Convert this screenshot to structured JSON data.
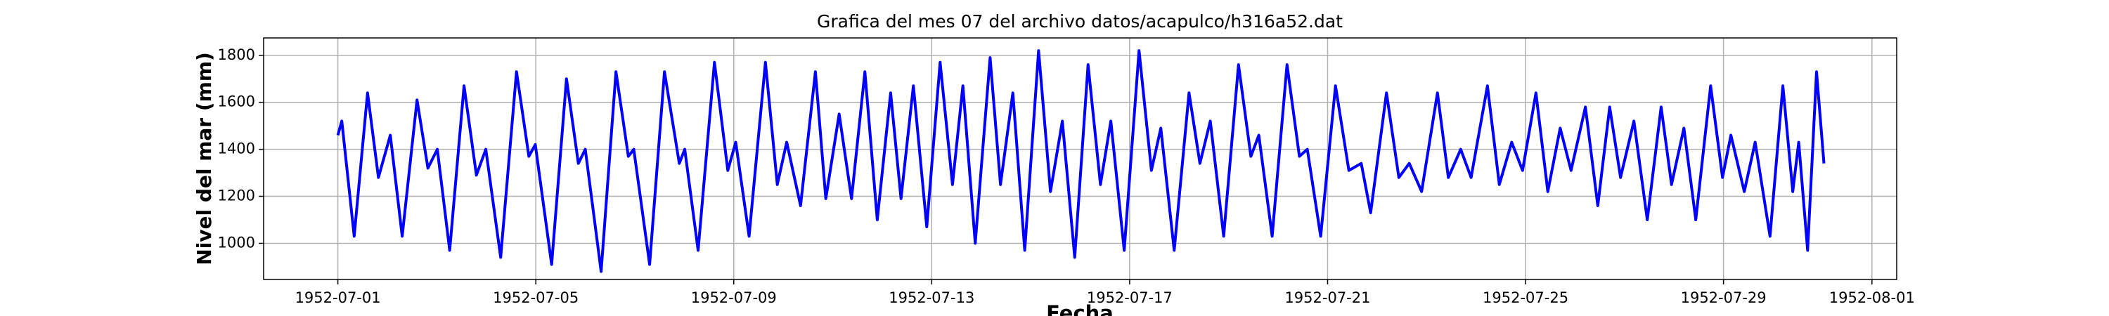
{
  "chart_data": {
    "type": "line",
    "title": "Grafica del mes 07 del archivo datos/acapulco/h316a52.dat",
    "x_label": "Fecha",
    "y_label": "Nivel del mar (mm)",
    "color": "#0000ff",
    "grid": true,
    "xlim": [
      -0.5,
      32.5
    ],
    "ylim": [
      846,
      1874
    ],
    "xticks": [
      {
        "value": 1,
        "label": "1952-07-01"
      },
      {
        "value": 5,
        "label": "1952-07-05"
      },
      {
        "value": 9,
        "label": "1952-07-09"
      },
      {
        "value": 13,
        "label": "1952-07-13"
      },
      {
        "value": 17,
        "label": "1952-07-17"
      },
      {
        "value": 21,
        "label": "1952-07-21"
      },
      {
        "value": 25,
        "label": "1952-07-25"
      },
      {
        "value": 29,
        "label": "1952-07-29"
      },
      {
        "value": 32,
        "label": "1952-08-01"
      }
    ],
    "yticks": [
      1000,
      1200,
      1400,
      1600,
      1800
    ],
    "x": [
      1.0,
      1.08,
      1.33,
      1.6,
      1.82,
      2.06,
      2.3,
      2.6,
      2.82,
      3.01,
      3.26,
      3.55,
      3.8,
      3.99,
      4.29,
      4.61,
      4.86,
      4.99,
      5.32,
      5.62,
      5.86,
      6.0,
      6.32,
      6.62,
      6.87,
      6.98,
      7.3,
      7.6,
      7.9,
      8.01,
      8.28,
      8.61,
      8.88,
      9.04,
      9.31,
      9.64,
      9.88,
      10.07,
      10.35,
      10.65,
      10.86,
      11.13,
      11.38,
      11.65,
      11.9,
      12.17,
      12.38,
      12.63,
      12.9,
      13.17,
      13.42,
      13.63,
      13.88,
      14.18,
      14.39,
      14.64,
      14.88,
      15.16,
      15.4,
      15.64,
      15.89,
      16.16,
      16.41,
      16.62,
      16.89,
      17.19,
      17.44,
      17.63,
      17.9,
      18.2,
      18.42,
      18.63,
      18.9,
      19.2,
      19.45,
      19.61,
      19.88,
      20.18,
      20.43,
      20.59,
      20.86,
      21.16,
      21.43,
      21.68,
      21.87,
      22.19,
      22.44,
      22.65,
      22.9,
      23.22,
      23.44,
      23.69,
      23.9,
      24.23,
      24.47,
      24.72,
      24.94,
      25.21,
      25.45,
      25.7,
      25.92,
      26.21,
      26.46,
      26.7,
      26.92,
      27.19,
      27.46,
      27.74,
      27.95,
      28.2,
      28.44,
      28.74,
      28.98,
      29.15,
      29.42,
      29.64,
      29.94,
      30.2,
      30.4,
      30.52,
      30.7,
      30.88,
      31.03
    ],
    "values": [
      1460,
      1520,
      1030,
      1640,
      1280,
      1460,
      1030,
      1610,
      1320,
      1400,
      970,
      1670,
      1290,
      1400,
      940,
      1730,
      1370,
      1420,
      910,
      1700,
      1340,
      1400,
      880,
      1730,
      1370,
      1400,
      910,
      1730,
      1340,
      1400,
      970,
      1770,
      1310,
      1430,
      1030,
      1770,
      1250,
      1430,
      1160,
      1730,
      1190,
      1550,
      1190,
      1730,
      1100,
      1640,
      1190,
      1670,
      1070,
      1770,
      1250,
      1670,
      1000,
      1790,
      1250,
      1640,
      970,
      1820,
      1220,
      1520,
      940,
      1760,
      1250,
      1520,
      970,
      1820,
      1310,
      1490,
      970,
      1640,
      1340,
      1520,
      1030,
      1760,
      1370,
      1460,
      1030,
      1760,
      1370,
      1400,
      1030,
      1670,
      1310,
      1340,
      1130,
      1640,
      1280,
      1340,
      1220,
      1640,
      1280,
      1400,
      1280,
      1670,
      1250,
      1430,
      1310,
      1640,
      1220,
      1490,
      1310,
      1580,
      1160,
      1580,
      1280,
      1520,
      1100,
      1580,
      1250,
      1490,
      1100,
      1670,
      1280,
      1460,
      1220,
      1430,
      1030,
      1670,
      1220,
      1430,
      970,
      1730,
      1340
    ]
  }
}
